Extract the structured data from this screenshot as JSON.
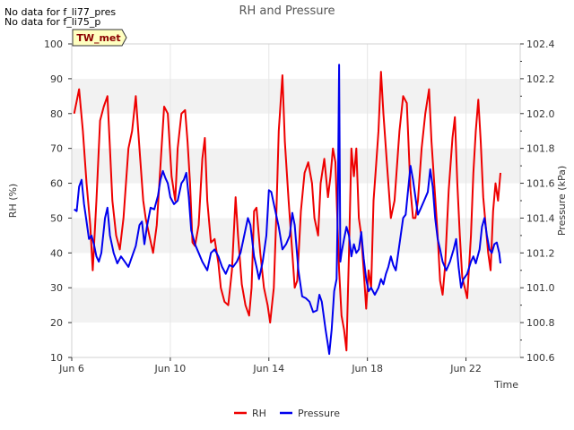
{
  "notes": [
    "No data for f_li77_pres",
    "No data for f_li75_p"
  ],
  "chart_data": {
    "type": "line",
    "title": "RH and Pressure",
    "xlabel": "Time",
    "ylabel_left": "RH (%)",
    "ylabel_right": "Pressure (kPa)",
    "site_badge": "TW_met",
    "xlim": [
      6.0,
      24.2
    ],
    "ylim_left": [
      10,
      100
    ],
    "ylim_right": [
      100.6,
      102.4
    ],
    "x_ticks": [
      {
        "x": 6,
        "label": "Jun 6"
      },
      {
        "x": 10,
        "label": "Jun 10"
      },
      {
        "x": 14,
        "label": "Jun 14"
      },
      {
        "x": 18,
        "label": "Jun 18"
      },
      {
        "x": 22,
        "label": "Jun 22"
      }
    ],
    "y_ticks_left": [
      10,
      20,
      30,
      40,
      50,
      60,
      70,
      80,
      90,
      100
    ],
    "y_ticks_right": [
      "100.6",
      "100.8",
      "101.0",
      "101.2",
      "101.4",
      "101.6",
      "101.8",
      "102.0",
      "102.2",
      "102.4"
    ],
    "grid": "horizontal alternating bands",
    "legend": "bottom",
    "series": [
      {
        "name": "RH",
        "axis": "left",
        "color": "#ee0000",
        "points": [
          [
            6.1,
            80
          ],
          [
            6.3,
            87
          ],
          [
            6.45,
            75
          ],
          [
            6.6,
            60
          ],
          [
            6.75,
            48
          ],
          [
            6.85,
            35
          ],
          [
            7.0,
            55
          ],
          [
            7.15,
            78
          ],
          [
            7.3,
            82
          ],
          [
            7.45,
            85
          ],
          [
            7.55,
            70
          ],
          [
            7.65,
            55
          ],
          [
            7.8,
            45
          ],
          [
            7.95,
            41
          ],
          [
            8.1,
            50
          ],
          [
            8.3,
            70
          ],
          [
            8.45,
            75
          ],
          [
            8.6,
            85
          ],
          [
            8.75,
            70
          ],
          [
            8.9,
            55
          ],
          [
            9.0,
            50
          ],
          [
            9.15,
            45
          ],
          [
            9.3,
            40
          ],
          [
            9.45,
            48
          ],
          [
            9.6,
            65
          ],
          [
            9.75,
            82
          ],
          [
            9.9,
            80
          ],
          [
            10.05,
            62
          ],
          [
            10.2,
            55
          ],
          [
            10.3,
            70
          ],
          [
            10.45,
            80
          ],
          [
            10.6,
            81
          ],
          [
            10.7,
            72
          ],
          [
            10.8,
            60
          ],
          [
            10.9,
            43
          ],
          [
            11.0,
            42
          ],
          [
            11.15,
            48
          ],
          [
            11.3,
            67
          ],
          [
            11.4,
            73
          ],
          [
            11.5,
            55
          ],
          [
            11.65,
            43
          ],
          [
            11.8,
            44
          ],
          [
            11.95,
            37
          ],
          [
            12.05,
            30
          ],
          [
            12.2,
            26
          ],
          [
            12.35,
            25
          ],
          [
            12.5,
            35
          ],
          [
            12.65,
            56
          ],
          [
            12.75,
            45
          ],
          [
            12.9,
            31
          ],
          [
            13.05,
            25
          ],
          [
            13.2,
            22
          ],
          [
            13.3,
            30
          ],
          [
            13.4,
            52
          ],
          [
            13.5,
            53
          ],
          [
            13.65,
            40
          ],
          [
            13.8,
            30
          ],
          [
            13.95,
            25
          ],
          [
            14.05,
            20
          ],
          [
            14.2,
            30
          ],
          [
            14.3,
            50
          ],
          [
            14.4,
            75
          ],
          [
            14.55,
            91
          ],
          [
            14.65,
            72
          ],
          [
            14.8,
            55
          ],
          [
            14.95,
            40
          ],
          [
            15.05,
            30
          ],
          [
            15.15,
            32
          ],
          [
            15.3,
            52
          ],
          [
            15.45,
            63
          ],
          [
            15.6,
            66
          ],
          [
            15.75,
            60
          ],
          [
            15.85,
            50
          ],
          [
            16.0,
            45
          ],
          [
            16.1,
            60
          ],
          [
            16.25,
            67
          ],
          [
            16.4,
            56
          ],
          [
            16.5,
            62
          ],
          [
            16.6,
            70
          ],
          [
            16.7,
            66
          ],
          [
            16.85,
            35
          ],
          [
            16.95,
            22
          ],
          [
            17.05,
            18
          ],
          [
            17.15,
            12
          ],
          [
            17.25,
            40
          ],
          [
            17.35,
            70
          ],
          [
            17.45,
            62
          ],
          [
            17.55,
            70
          ],
          [
            17.65,
            50
          ],
          [
            17.75,
            45
          ],
          [
            17.85,
            35
          ],
          [
            17.95,
            24
          ],
          [
            18.05,
            35
          ],
          [
            18.15,
            30
          ],
          [
            18.25,
            55
          ],
          [
            18.35,
            65
          ],
          [
            18.45,
            75
          ],
          [
            18.55,
            92
          ],
          [
            18.65,
            80
          ],
          [
            18.8,
            65
          ],
          [
            18.95,
            50
          ],
          [
            19.1,
            55
          ],
          [
            19.3,
            75
          ],
          [
            19.45,
            85
          ],
          [
            19.6,
            83
          ],
          [
            19.75,
            58
          ],
          [
            19.85,
            50
          ],
          [
            19.95,
            50
          ],
          [
            20.05,
            55
          ],
          [
            20.2,
            70
          ],
          [
            20.35,
            80
          ],
          [
            20.5,
            87
          ],
          [
            20.6,
            72
          ],
          [
            20.75,
            56
          ],
          [
            20.85,
            45
          ],
          [
            20.95,
            32
          ],
          [
            21.05,
            28
          ],
          [
            21.15,
            36
          ],
          [
            21.3,
            58
          ],
          [
            21.45,
            73
          ],
          [
            21.55,
            79
          ],
          [
            21.65,
            60
          ],
          [
            21.75,
            45
          ],
          [
            21.85,
            33
          ],
          [
            21.95,
            30
          ],
          [
            22.05,
            27
          ],
          [
            22.2,
            45
          ],
          [
            22.3,
            63
          ],
          [
            22.4,
            75
          ],
          [
            22.5,
            84
          ],
          [
            22.6,
            72
          ],
          [
            22.7,
            56
          ],
          [
            22.8,
            48
          ],
          [
            22.9,
            40
          ],
          [
            23.0,
            35
          ],
          [
            23.1,
            52
          ],
          [
            23.2,
            60
          ],
          [
            23.3,
            55
          ],
          [
            23.4,
            63
          ]
        ]
      },
      {
        "name": "Pressure",
        "axis": "right",
        "color": "#0000ee",
        "points": [
          [
            6.1,
            101.45
          ],
          [
            6.2,
            101.44
          ],
          [
            6.3,
            101.58
          ],
          [
            6.4,
            101.62
          ],
          [
            6.5,
            101.48
          ],
          [
            6.6,
            101.38
          ],
          [
            6.7,
            101.28
          ],
          [
            6.8,
            101.3
          ],
          [
            6.9,
            101.25
          ],
          [
            7.0,
            101.18
          ],
          [
            7.1,
            101.15
          ],
          [
            7.2,
            101.2
          ],
          [
            7.35,
            101.4
          ],
          [
            7.45,
            101.46
          ],
          [
            7.55,
            101.3
          ],
          [
            7.7,
            101.2
          ],
          [
            7.85,
            101.14
          ],
          [
            8.0,
            101.18
          ],
          [
            8.15,
            101.15
          ],
          [
            8.3,
            101.12
          ],
          [
            8.45,
            101.18
          ],
          [
            8.6,
            101.24
          ],
          [
            8.75,
            101.36
          ],
          [
            8.85,
            101.38
          ],
          [
            8.95,
            101.25
          ],
          [
            9.05,
            101.35
          ],
          [
            9.2,
            101.46
          ],
          [
            9.35,
            101.45
          ],
          [
            9.5,
            101.53
          ],
          [
            9.6,
            101.62
          ],
          [
            9.7,
            101.67
          ],
          [
            9.8,
            101.63
          ],
          [
            9.9,
            101.6
          ],
          [
            10.0,
            101.52
          ],
          [
            10.15,
            101.48
          ],
          [
            10.3,
            101.5
          ],
          [
            10.45,
            101.6
          ],
          [
            10.55,
            101.62
          ],
          [
            10.65,
            101.66
          ],
          [
            10.75,
            101.52
          ],
          [
            10.85,
            101.33
          ],
          [
            11.0,
            101.25
          ],
          [
            11.15,
            101.2
          ],
          [
            11.3,
            101.15
          ],
          [
            11.5,
            101.1
          ],
          [
            11.65,
            101.2
          ],
          [
            11.8,
            101.22
          ],
          [
            11.95,
            101.18
          ],
          [
            12.1,
            101.12
          ],
          [
            12.25,
            101.08
          ],
          [
            12.4,
            101.13
          ],
          [
            12.55,
            101.12
          ],
          [
            12.7,
            101.15
          ],
          [
            12.85,
            101.2
          ],
          [
            13.0,
            101.3
          ],
          [
            13.15,
            101.4
          ],
          [
            13.25,
            101.36
          ],
          [
            13.4,
            101.18
          ],
          [
            13.5,
            101.12
          ],
          [
            13.6,
            101.05
          ],
          [
            13.75,
            101.15
          ],
          [
            13.9,
            101.3
          ],
          [
            14.0,
            101.56
          ],
          [
            14.1,
            101.55
          ],
          [
            14.25,
            101.45
          ],
          [
            14.4,
            101.35
          ],
          [
            14.55,
            101.22
          ],
          [
            14.7,
            101.25
          ],
          [
            14.85,
            101.3
          ],
          [
            14.95,
            101.43
          ],
          [
            15.05,
            101.36
          ],
          [
            15.2,
            101.1
          ],
          [
            15.35,
            100.95
          ],
          [
            15.5,
            100.94
          ],
          [
            15.65,
            100.92
          ],
          [
            15.8,
            100.86
          ],
          [
            15.95,
            100.87
          ],
          [
            16.05,
            100.96
          ],
          [
            16.15,
            100.92
          ],
          [
            16.3,
            100.76
          ],
          [
            16.4,
            100.67
          ],
          [
            16.45,
            100.62
          ],
          [
            16.55,
            100.76
          ],
          [
            16.65,
            100.98
          ],
          [
            16.75,
            101.05
          ],
          [
            16.8,
            101.5
          ],
          [
            16.85,
            102.28
          ],
          [
            16.9,
            101.15
          ],
          [
            16.95,
            101.2
          ],
          [
            17.05,
            101.28
          ],
          [
            17.15,
            101.35
          ],
          [
            17.25,
            101.3
          ],
          [
            17.35,
            101.18
          ],
          [
            17.45,
            101.25
          ],
          [
            17.55,
            101.2
          ],
          [
            17.65,
            101.22
          ],
          [
            17.75,
            101.32
          ],
          [
            17.85,
            101.17
          ],
          [
            17.95,
            101.05
          ],
          [
            18.05,
            100.98
          ],
          [
            18.15,
            101.0
          ],
          [
            18.3,
            100.96
          ],
          [
            18.45,
            101.0
          ],
          [
            18.55,
            101.05
          ],
          [
            18.65,
            101.02
          ],
          [
            18.75,
            101.08
          ],
          [
            18.85,
            101.12
          ],
          [
            18.95,
            101.18
          ],
          [
            19.05,
            101.13
          ],
          [
            19.15,
            101.1
          ],
          [
            19.3,
            101.25
          ],
          [
            19.45,
            101.4
          ],
          [
            19.55,
            101.42
          ],
          [
            19.65,
            101.56
          ],
          [
            19.75,
            101.7
          ],
          [
            19.85,
            101.62
          ],
          [
            19.95,
            101.52
          ],
          [
            20.05,
            101.42
          ],
          [
            20.15,
            101.45
          ],
          [
            20.3,
            101.5
          ],
          [
            20.45,
            101.55
          ],
          [
            20.55,
            101.68
          ],
          [
            20.65,
            101.58
          ],
          [
            20.75,
            101.4
          ],
          [
            20.85,
            101.28
          ],
          [
            20.95,
            101.22
          ],
          [
            21.05,
            101.15
          ],
          [
            21.2,
            101.1
          ],
          [
            21.35,
            101.15
          ],
          [
            21.5,
            101.22
          ],
          [
            21.6,
            101.28
          ],
          [
            21.7,
            101.12
          ],
          [
            21.8,
            101.0
          ],
          [
            21.9,
            101.05
          ],
          [
            22.05,
            101.08
          ],
          [
            22.2,
            101.15
          ],
          [
            22.3,
            101.18
          ],
          [
            22.4,
            101.14
          ],
          [
            22.55,
            101.22
          ],
          [
            22.65,
            101.35
          ],
          [
            22.75,
            101.4
          ],
          [
            22.85,
            101.3
          ],
          [
            22.95,
            101.22
          ],
          [
            23.05,
            101.2
          ],
          [
            23.15,
            101.25
          ],
          [
            23.25,
            101.26
          ],
          [
            23.35,
            101.2
          ],
          [
            23.4,
            101.14
          ]
        ]
      }
    ]
  }
}
